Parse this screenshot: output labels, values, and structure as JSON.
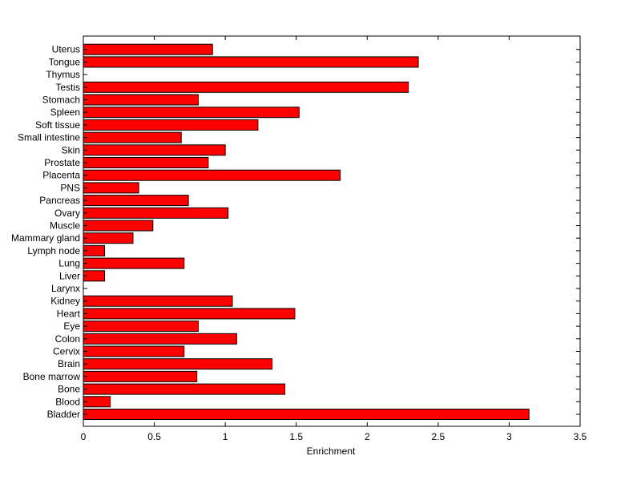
{
  "chart_data": {
    "type": "bar",
    "orientation": "horizontal",
    "categories": [
      "Bladder",
      "Blood",
      "Bone",
      "Bone marrow",
      "Brain",
      "Cervix",
      "Colon",
      "Eye",
      "Heart",
      "Kidney",
      "Larynx",
      "Liver",
      "Lung",
      "Lymph node",
      "Mammary gland",
      "Muscle",
      "Ovary",
      "Pancreas",
      "PNS",
      "Placenta",
      "Prostate",
      "Skin",
      "Small intestine",
      "Soft tissue",
      "Spleen",
      "Stomach",
      "Testis",
      "Thymus",
      "Tongue",
      "Uterus"
    ],
    "values": [
      3.14,
      0.19,
      1.42,
      0.8,
      1.33,
      0.71,
      1.08,
      0.81,
      1.49,
      1.05,
      0.0,
      0.15,
      0.71,
      0.15,
      0.35,
      0.49,
      1.02,
      0.74,
      0.39,
      1.81,
      0.88,
      1.0,
      0.69,
      1.23,
      1.52,
      0.81,
      2.29,
      0.0,
      2.36,
      0.91
    ],
    "xlabel": "Enrichment",
    "ylabel": "",
    "title": "",
    "xlim": [
      0,
      3.5
    ],
    "xticks": [
      "0",
      "0.5",
      "1",
      "1.5",
      "2",
      "2.5",
      "3",
      "3.5"
    ],
    "grid": false,
    "bar_color": "#ff0000",
    "edge_color": "#000000"
  }
}
